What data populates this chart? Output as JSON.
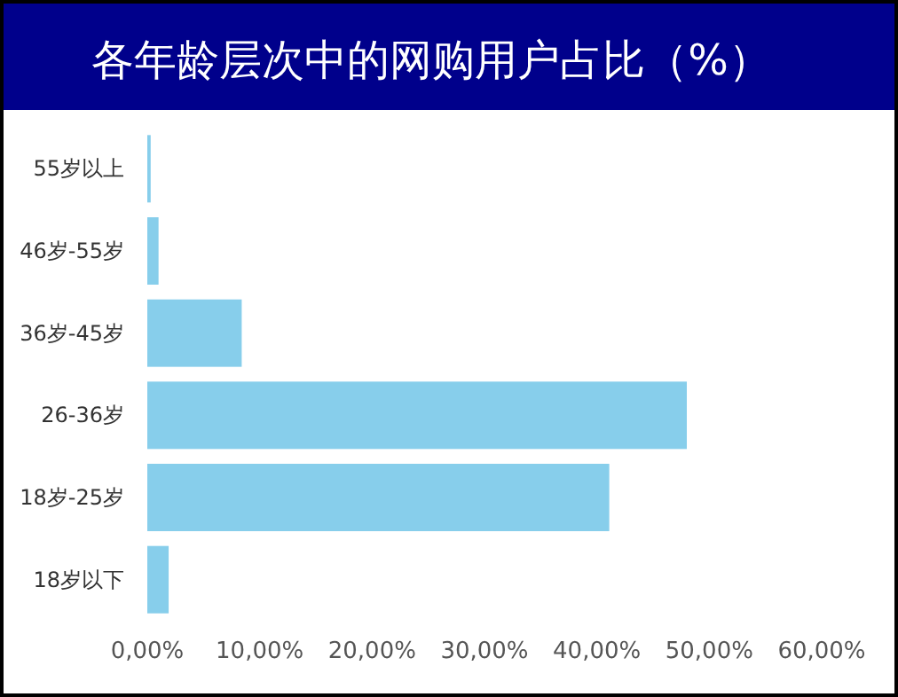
{
  "chart_data": {
    "type": "bar",
    "orientation": "horizontal",
    "title": "各年龄层次中的网购用户占比（%）",
    "categories": [
      "55岁以上",
      "46岁-55岁",
      "36岁-45岁",
      "26-36岁",
      "18岁-25岁",
      "18岁以下"
    ],
    "values": [
      0.3,
      1.0,
      8.4,
      48.0,
      41.1,
      1.9
    ],
    "color": "#87ceeb",
    "xlim": [
      0,
      60
    ],
    "xticks": [
      {
        "value": 0,
        "label": "0,00%"
      },
      {
        "value": 10,
        "label": "10,00%"
      },
      {
        "value": 20,
        "label": "20,00%"
      },
      {
        "value": 30,
        "label": "30,00%"
      },
      {
        "value": 40,
        "label": "40,00%"
      },
      {
        "value": 50,
        "label": "50,00%"
      },
      {
        "value": 60,
        "label": "60,00%"
      }
    ]
  }
}
